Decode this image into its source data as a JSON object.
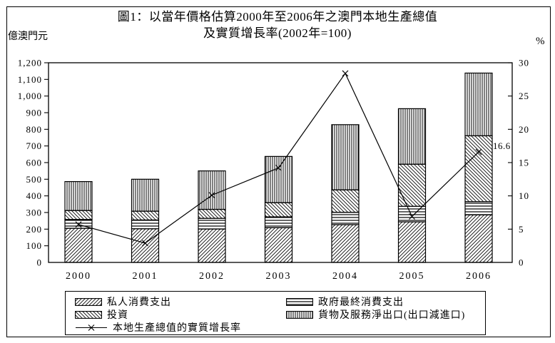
{
  "title": {
    "line1": "圖1：以當年價格估算2000年至2006年之澳門本地生產總值",
    "line2": "及實質增長率(2002年=100)"
  },
  "axes": {
    "left_unit": "億澳門元",
    "right_unit": "%",
    "left_ticks": [
      "0",
      "100",
      "200",
      "300",
      "400",
      "500",
      "600",
      "700",
      "800",
      "900",
      "1,000",
      "1,100",
      "1,200"
    ],
    "right_ticks": [
      "0",
      "5",
      "10",
      "15",
      "20",
      "25",
      "30"
    ]
  },
  "chart_data": {
    "type": "bar",
    "subtype": "stacked-bar-with-line",
    "categories": [
      "2000",
      "2001",
      "2002",
      "2003",
      "2004",
      "2005",
      "2006"
    ],
    "series": [
      {
        "name": "私人消費支出",
        "type": "bar",
        "pattern": "diagonal",
        "values": [
          205,
          202,
          201,
          209,
          227,
          244,
          286
        ]
      },
      {
        "name": "政府最終消費支出",
        "type": "bar",
        "pattern": "horizontal",
        "values": [
          53,
          53,
          64,
          65,
          74,
          93,
          79
        ]
      },
      {
        "name": "投資",
        "type": "bar",
        "pattern": "backslash",
        "values": [
          54,
          53,
          54,
          85,
          135,
          253,
          396
        ]
      },
      {
        "name": "貨物及服務淨出口(出口減進口)",
        "type": "bar",
        "pattern": "vertical",
        "values": [
          174,
          192,
          231,
          278,
          392,
          334,
          377
        ]
      },
      {
        "name": "本地生產總值的實質增長率",
        "type": "line",
        "axis": "right",
        "values": [
          5.7,
          2.9,
          10.1,
          14.2,
          28.4,
          6.9,
          16.6
        ]
      }
    ],
    "left_axis": {
      "label": "億澳門元",
      "range": [
        0,
        1200
      ],
      "tick_step": 100
    },
    "right_axis": {
      "label": "%",
      "range": [
        0,
        30
      ],
      "tick_step": 5
    },
    "annotations": [
      {
        "text": "16.6",
        "series": "本地生產總值的實質增長率",
        "category": "2006",
        "value": 16.6
      }
    ],
    "legend_position": "bottom",
    "grid": false,
    "title": "圖1：以當年價格估算2000年至2006年之澳門本地生產總值及實質增長率(2002年=100)"
  },
  "legend": {
    "items": [
      {
        "label": "私人消費支出",
        "pattern": "diagonal"
      },
      {
        "label": "政府最終消費支出",
        "pattern": "horizontal"
      },
      {
        "label": "投資",
        "pattern": "backslash"
      },
      {
        "label": "貨物及服務淨出口(出口減進口)",
        "pattern": "vertical"
      },
      {
        "label": "本地生產總值的實質增長率",
        "pattern": "line"
      }
    ]
  },
  "colors": {
    "foreground": "#000000",
    "background": "#ffffff"
  }
}
